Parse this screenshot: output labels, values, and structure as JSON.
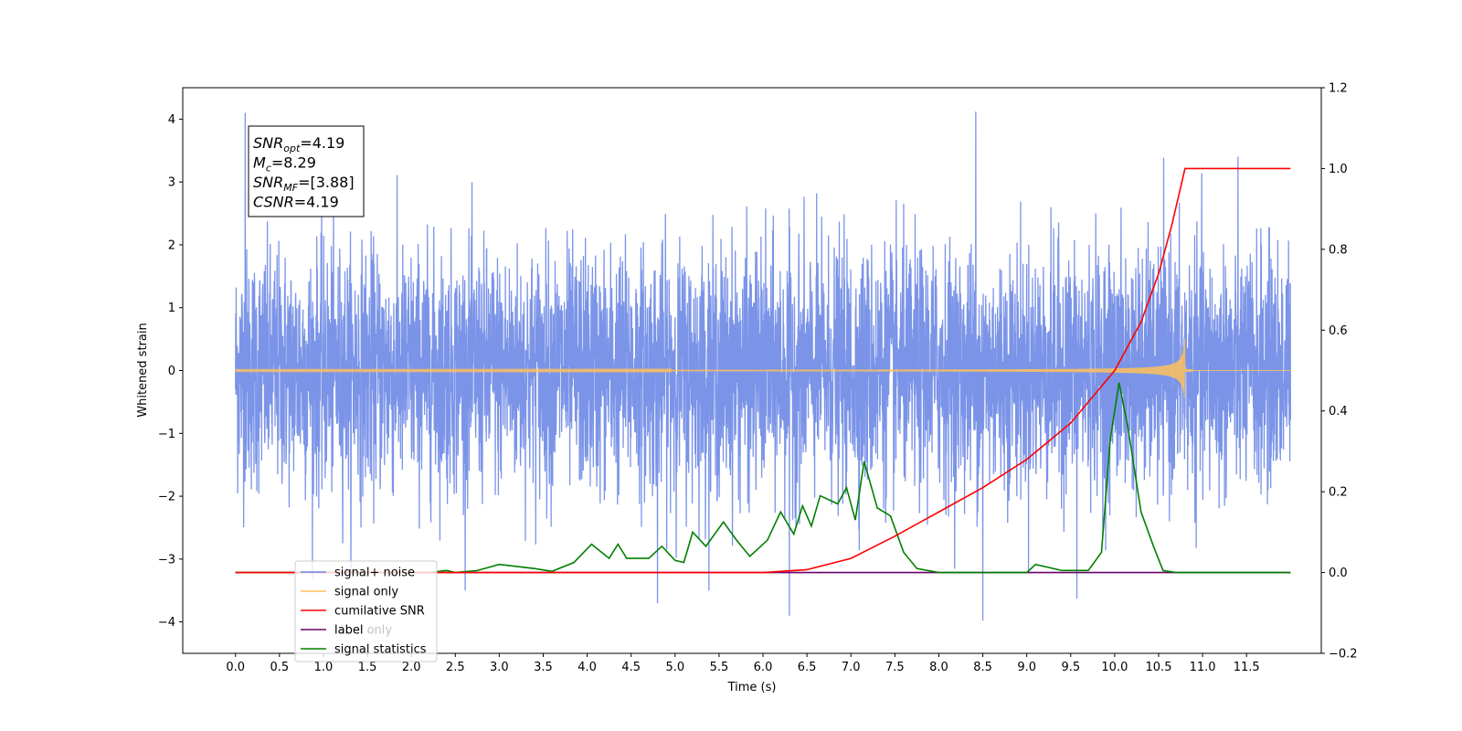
{
  "chart_data": {
    "type": "line",
    "xlabel": "Time (s)",
    "ylabel_left": "Whitened strain",
    "ylabel_right": "",
    "xlim": [
      -0.6,
      12.35
    ],
    "ylim_left": [
      -4.5,
      4.5
    ],
    "ylim_right": [
      -0.2,
      1.2
    ],
    "xticks": [
      0.0,
      0.5,
      1.0,
      1.5,
      2.0,
      2.5,
      3.0,
      3.5,
      4.0,
      4.5,
      5.0,
      5.5,
      6.0,
      6.5,
      7.0,
      7.5,
      8.0,
      8.5,
      9.0,
      9.5,
      10.0,
      10.5,
      11.0,
      11.5
    ],
    "xtick_labels": [
      "0.0",
      "0.5",
      "1.0",
      "1.5",
      "2.0",
      "2.5",
      "3.0",
      "3.5",
      "4.0",
      "4.5",
      "5.0",
      "5.5",
      "6.0",
      "6.5",
      "7.0",
      "7.5",
      "8.0",
      "8.5",
      "9.0",
      "9.5",
      "10.0",
      "10.5",
      "11.0",
      "11.5"
    ],
    "yticks_left": [
      -4,
      -3,
      -2,
      -1,
      0,
      1,
      2,
      3,
      4
    ],
    "ytick_labels_left": [
      "−4",
      "−3",
      "−2",
      "−1",
      "0",
      "1",
      "2",
      "3",
      "4"
    ],
    "yticks_right": [
      -0.2,
      0.0,
      0.2,
      0.4,
      0.6,
      0.8,
      1.0,
      1.2
    ],
    "ytick_labels_right": [
      "−0.2",
      "0.0",
      "0.2",
      "0.4",
      "0.6",
      "0.8",
      "1.0",
      "1.2"
    ],
    "grid": false,
    "legend_position": "lower-left",
    "annotation": {
      "lines": [
        {
          "base": "SNR",
          "sub": "opt",
          "value": "=4.19"
        },
        {
          "base": "M",
          "sub": "c",
          "value": "=8.29"
        },
        {
          "base": "SNR",
          "sub": "MF",
          "value": "=[3.88]"
        },
        {
          "base": "CSNR",
          "sub": "",
          "value": "=4.19"
        }
      ]
    },
    "series": [
      {
        "name": "signal+ noise",
        "axis": "left",
        "color": "#6d88e6",
        "description": "noise time series, roughly gaussian, amplitude ~±2, peaks to ~±4",
        "t_start": 0.0,
        "t_end": 12.0,
        "extremes": [
          {
            "t": 0.11,
            "v": 4.1
          },
          {
            "t": 8.42,
            "v": 4.12
          },
          {
            "t": 4.8,
            "v": -3.7
          },
          {
            "t": 6.3,
            "v": -3.9
          },
          {
            "t": 8.5,
            "v": -3.98
          },
          {
            "t": 9.57,
            "v": -3.63
          }
        ]
      },
      {
        "name": "signal only",
        "axis": "left",
        "color": "#ffc15c",
        "description": "chirp signal, amplitude grows toward merger",
        "t_start": 0.0,
        "t_end": 12.0,
        "merger_time": 10.8,
        "peak_amplitude": 0.6
      },
      {
        "name": "cumilative SNR",
        "axis": "right",
        "color": "#ff0000",
        "points": [
          [
            0.0,
            0.0
          ],
          [
            6.0,
            0.0
          ],
          [
            6.5,
            0.007
          ],
          [
            7.0,
            0.035
          ],
          [
            7.5,
            0.09
          ],
          [
            8.0,
            0.15
          ],
          [
            8.5,
            0.21
          ],
          [
            9.0,
            0.28
          ],
          [
            9.5,
            0.37
          ],
          [
            10.0,
            0.5
          ],
          [
            10.3,
            0.62
          ],
          [
            10.5,
            0.74
          ],
          [
            10.65,
            0.86
          ],
          [
            10.8,
            1.0
          ],
          [
            12.0,
            1.0
          ]
        ]
      },
      {
        "name": "label",
        "axis": "right",
        "color": "#6a006a",
        "points": [
          [
            0.0,
            0.0
          ],
          [
            12.0,
            0.0
          ]
        ]
      },
      {
        "name": "label only",
        "axis": "right",
        "color": "#6a006a",
        "hidden": true,
        "points": []
      },
      {
        "name": "signal statistics",
        "axis": "right",
        "color": "#008000",
        "points": [
          [
            0.0,
            0.0
          ],
          [
            2.2,
            0.0
          ],
          [
            2.4,
            0.005
          ],
          [
            2.5,
            0.0
          ],
          [
            2.75,
            0.005
          ],
          [
            3.0,
            0.02
          ],
          [
            3.2,
            0.015
          ],
          [
            3.4,
            0.01
          ],
          [
            3.6,
            0.003
          ],
          [
            3.85,
            0.025
          ],
          [
            4.05,
            0.07
          ],
          [
            4.25,
            0.035
          ],
          [
            4.35,
            0.07
          ],
          [
            4.45,
            0.035
          ],
          [
            4.7,
            0.035
          ],
          [
            4.85,
            0.065
          ],
          [
            5.0,
            0.03
          ],
          [
            5.1,
            0.025
          ],
          [
            5.2,
            0.1
          ],
          [
            5.35,
            0.065
          ],
          [
            5.55,
            0.125
          ],
          [
            5.7,
            0.08
          ],
          [
            5.85,
            0.04
          ],
          [
            6.05,
            0.08
          ],
          [
            6.2,
            0.15
          ],
          [
            6.35,
            0.095
          ],
          [
            6.45,
            0.165
          ],
          [
            6.55,
            0.115
          ],
          [
            6.65,
            0.19
          ],
          [
            6.85,
            0.17
          ],
          [
            6.95,
            0.21
          ],
          [
            7.05,
            0.13
          ],
          [
            7.15,
            0.275
          ],
          [
            7.3,
            0.16
          ],
          [
            7.45,
            0.14
          ],
          [
            7.6,
            0.05
          ],
          [
            7.75,
            0.01
          ],
          [
            8.0,
            0.0
          ],
          [
            9.0,
            0.0
          ],
          [
            9.1,
            0.02
          ],
          [
            9.4,
            0.005
          ],
          [
            9.7,
            0.005
          ],
          [
            9.85,
            0.05
          ],
          [
            9.95,
            0.33
          ],
          [
            10.05,
            0.47
          ],
          [
            10.15,
            0.36
          ],
          [
            10.3,
            0.15
          ],
          [
            10.45,
            0.06
          ],
          [
            10.55,
            0.005
          ],
          [
            10.7,
            0.0
          ],
          [
            12.0,
            0.0
          ]
        ]
      }
    ]
  }
}
